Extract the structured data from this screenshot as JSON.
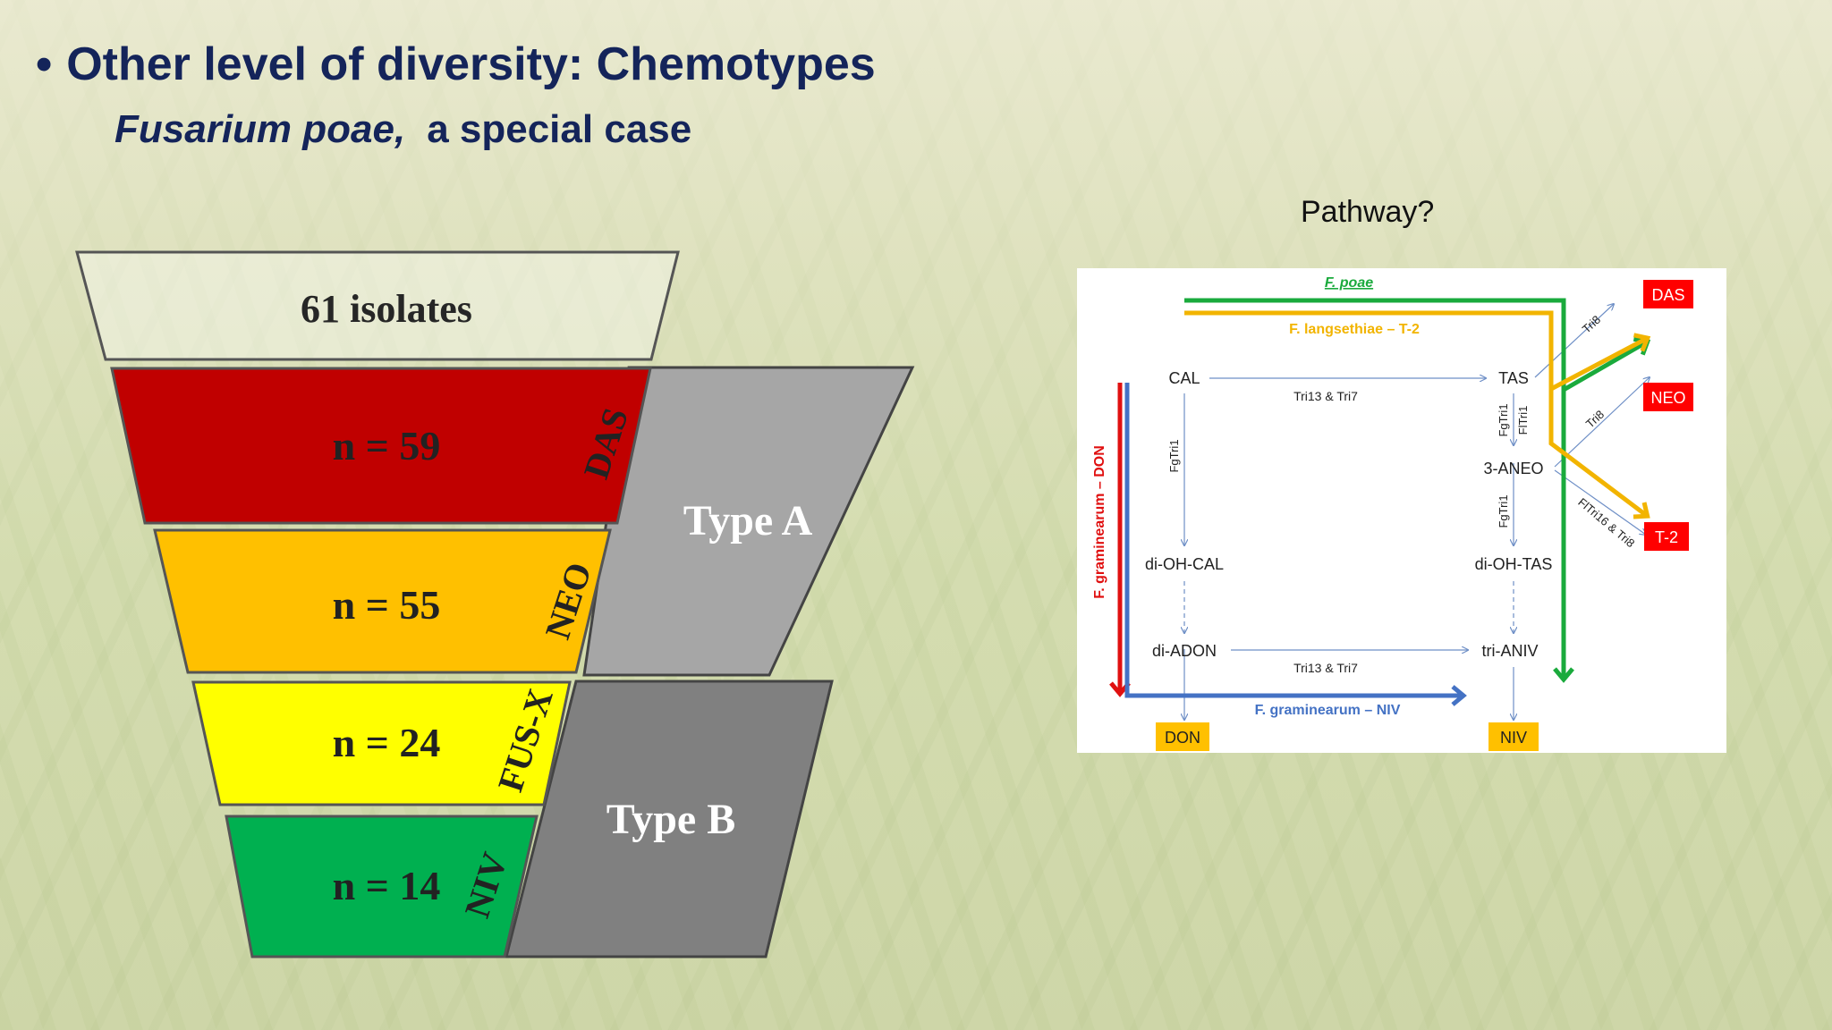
{
  "title": {
    "bullet": "•",
    "text": "Other level of diversity: Chemotypes"
  },
  "subtitle": {
    "species": "Fusarium poae,",
    "rest": "a special case"
  },
  "pathway_label": "Pathway?",
  "funnel": {
    "header": "61 isolates",
    "tiers": [
      {
        "count": "n = 59",
        "tag": "DAS",
        "color": "#c00000"
      },
      {
        "count": "n = 55",
        "tag": "NEO",
        "color": "#ffc000"
      },
      {
        "count": "n = 24",
        "tag": "FUS-X",
        "color": "#ffff00"
      },
      {
        "count": "n = 14",
        "tag": "NIV",
        "color": "#00b050"
      }
    ],
    "types": [
      {
        "label": "Type A",
        "color": "#a6a6a6"
      },
      {
        "label": "Type B",
        "color": "#808080"
      }
    ]
  },
  "pathway": {
    "nodes": {
      "cal": "CAL",
      "tas": "TAS",
      "aneo": "3-ANEO",
      "dioh_cal": "di-OH-CAL",
      "dioh_tas": "di-OH-TAS",
      "diadon": "di-ADON",
      "trianiv": "tri-ANIV"
    },
    "products": {
      "das": "DAS",
      "neo": "NEO",
      "t2": "T-2",
      "don": "DON",
      "niv": "NIV"
    },
    "enzymes": {
      "tri13_tri7_top": "Tri13 & Tri7",
      "tri13_tri7_bottom": "Tri13 & Tri7",
      "fgtri1_left": "FgTri1",
      "fgtri1_right_a": "FgTri1",
      "fltri1": "FlTri1",
      "fgtri1_right_b": "FgTri1",
      "tri8_das": "Tri8",
      "tri8_neo": "Tri8",
      "fltri16_tri8": "FlTri16 & Tri8"
    },
    "routes": {
      "poae": "F. poae",
      "langsethiae": "F. langsethiae – T-2",
      "graminearum_don": "F. graminearum – DON",
      "graminearum_niv": "F. graminearum – NIV"
    },
    "colors": {
      "poae": "#1aaa3c",
      "langsethiae": "#f2b400",
      "don": "#e01010",
      "niv": "#4472c4",
      "red_box": "#ff0000",
      "yellow_box": "#ffc000"
    }
  }
}
